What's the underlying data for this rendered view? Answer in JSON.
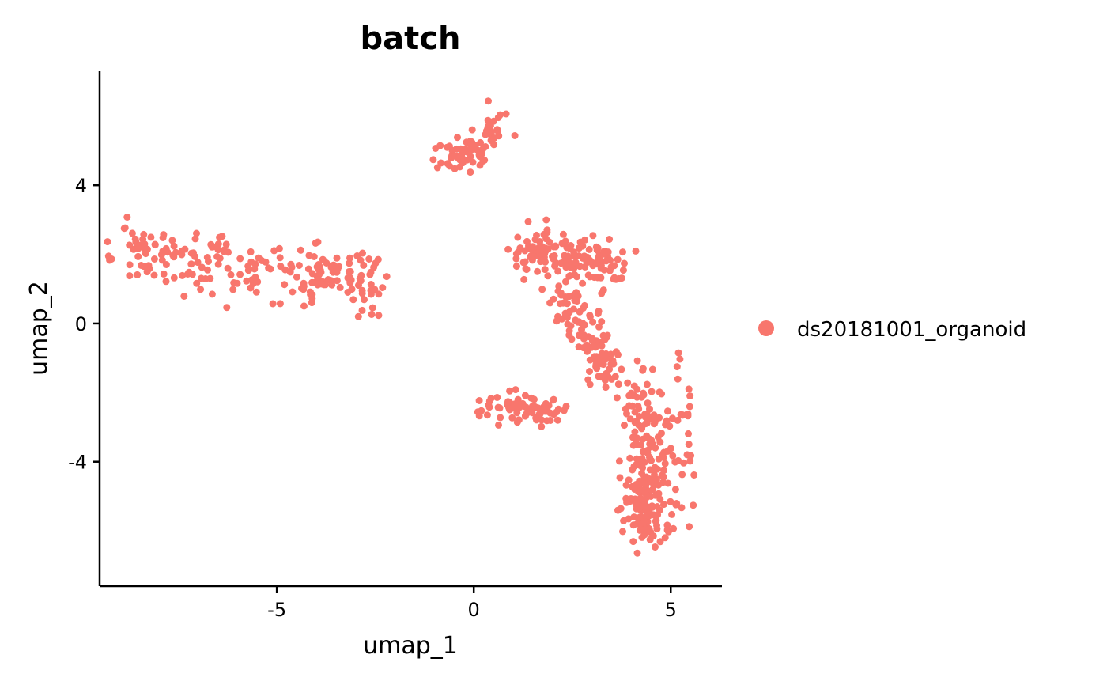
{
  "chart_data": {
    "type": "scatter",
    "title": "batch",
    "xlabel": "umap_1",
    "ylabel": "umap_2",
    "xlim": [
      -9.5,
      6.3
    ],
    "ylim": [
      -7.6,
      7.3
    ],
    "xticks": [
      {
        "value": -5,
        "label": "-5"
      },
      {
        "value": 0,
        "label": "0"
      },
      {
        "value": 5,
        "label": "5"
      }
    ],
    "yticks": [
      {
        "value": 4,
        "label": "4"
      },
      {
        "value": 0,
        "label": "0"
      },
      {
        "value": -4,
        "label": "-4"
      }
    ],
    "grid": false,
    "legend_position": "right",
    "series": [
      {
        "name": "ds20181001_organoid",
        "color": "#F8766D",
        "clusters": [
          {
            "region": "left-band",
            "count": 220,
            "anchors": [
              [
                -8.9,
                2.2
              ],
              [
                -7.5,
                2.0
              ],
              [
                -5.5,
                1.5
              ],
              [
                -3.8,
                1.4
              ],
              [
                -2.4,
                1.2
              ]
            ],
            "spread": 0.55
          },
          {
            "region": "top-island",
            "count": 70,
            "anchors": [
              [
                -0.9,
                4.6
              ],
              [
                -0.3,
                4.8
              ],
              [
                0.2,
                5.2
              ],
              [
                0.7,
                6.0
              ]
            ],
            "spread": 0.32
          },
          {
            "region": "upper-right",
            "count": 150,
            "anchors": [
              [
                1.2,
                2.2
              ],
              [
                2.0,
                1.9
              ],
              [
                2.9,
                1.7
              ],
              [
                3.6,
                1.8
              ]
            ],
            "spread": 0.45
          },
          {
            "region": "mid-right-column",
            "count": 120,
            "anchors": [
              [
                2.2,
                1.0
              ],
              [
                2.7,
                0.1
              ],
              [
                3.1,
                -0.8
              ],
              [
                3.4,
                -1.5
              ]
            ],
            "spread": 0.42
          },
          {
            "region": "mid-left-branch",
            "count": 70,
            "anchors": [
              [
                0.2,
                -2.4
              ],
              [
                1.2,
                -2.4
              ],
              [
                2.1,
                -2.4
              ]
            ],
            "spread": 0.3
          },
          {
            "region": "lower-right",
            "count": 230,
            "anchors": [
              [
                4.2,
                -1.8
              ],
              [
                4.5,
                -3.5
              ],
              [
                4.3,
                -5.2
              ],
              [
                4.5,
                -6.1
              ]
            ],
            "spread": 0.55
          },
          {
            "region": "right-edge",
            "count": 25,
            "anchors": [
              [
                5.3,
                -0.8
              ],
              [
                5.4,
                -3.6
              ],
              [
                5.3,
                -5.8
              ]
            ],
            "spread": 0.25
          }
        ]
      }
    ]
  }
}
